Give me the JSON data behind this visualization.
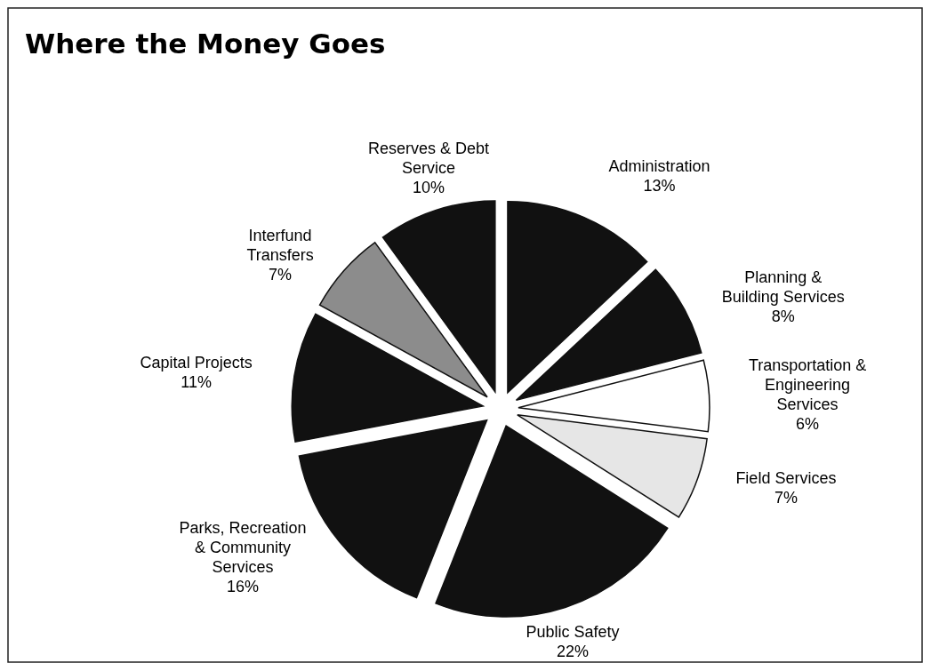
{
  "chart_data": {
    "type": "pie",
    "title": "Where the Money Goes",
    "categories": [
      "Administration",
      "Planning &\nBuilding Services",
      "Transportation &\nEngineering\nServices",
      "Field Services",
      "Public Safety",
      "Parks, Recreation\n& Community\nServices",
      "Capital Projects",
      "Interfund\nTransfers",
      "Reserves & Debt\nService"
    ],
    "values": [
      13,
      8,
      6,
      7,
      22,
      16,
      11,
      7,
      10
    ],
    "value_labels": [
      "13%",
      "8%",
      "6%",
      "7%",
      "22%",
      "16%",
      "11%",
      "7%",
      "10%"
    ],
    "colors": [
      "#111111",
      "#111111",
      "#ffffff",
      "#e6e6e6",
      "#111111",
      "#111111",
      "#111111",
      "#8c8c8c",
      "#111111"
    ]
  }
}
